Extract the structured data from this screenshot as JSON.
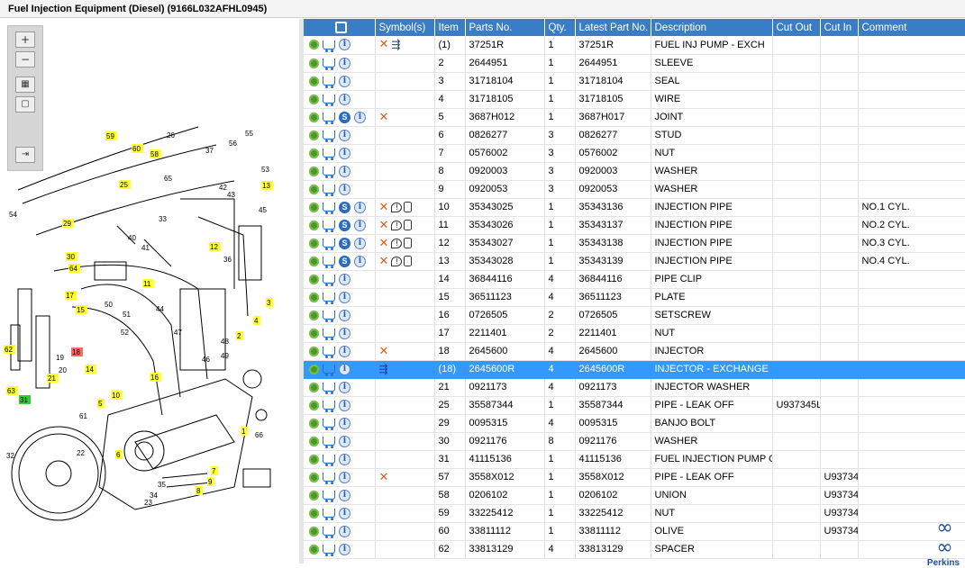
{
  "window": {
    "title": "Fuel Injection Equipment (Diesel) (9166L032AFHL0945)"
  },
  "zoom_toolbar": {
    "zoom_in_icon": "zoom-in-icon",
    "zoom_out_icon": "zoom-out-icon",
    "fit_icon": "fit-page-icon",
    "actual_size_icon": "actual-size-icon",
    "export_icon": "export-icon"
  },
  "diagram": {
    "labels": [
      {
        "t": "59",
        "y": true
      },
      {
        "t": "60",
        "y": true
      },
      {
        "t": "58",
        "y": true
      },
      {
        "t": "25",
        "y": true
      },
      {
        "t": "13",
        "y": true
      },
      {
        "t": "29",
        "y": true
      },
      {
        "t": "30",
        "y": true
      },
      {
        "t": "64",
        "y": true
      },
      {
        "t": "12",
        "y": true
      },
      {
        "t": "11",
        "y": true
      },
      {
        "t": "17",
        "y": true
      },
      {
        "t": "15",
        "y": true
      },
      {
        "t": "3",
        "y": true
      },
      {
        "t": "4",
        "y": true
      },
      {
        "t": "2",
        "y": true
      },
      {
        "t": "62",
        "y": true
      },
      {
        "t": "21",
        "y": true
      },
      {
        "t": "63",
        "y": true
      },
      {
        "t": "14",
        "y": true
      },
      {
        "t": "16",
        "y": true
      },
      {
        "t": "10",
        "y": true
      },
      {
        "t": "5",
        "y": true
      },
      {
        "t": "1",
        "y": true
      },
      {
        "t": "6",
        "y": true
      },
      {
        "t": "7",
        "y": true
      },
      {
        "t": "9",
        "y": true
      },
      {
        "t": "8",
        "y": true
      },
      {
        "t": "18",
        "r": true
      },
      {
        "t": "31",
        "g": true
      },
      {
        "t": "26"
      },
      {
        "t": "56"
      },
      {
        "t": "55"
      },
      {
        "t": "37"
      },
      {
        "t": "53"
      },
      {
        "t": "65"
      },
      {
        "t": "42"
      },
      {
        "t": "43"
      },
      {
        "t": "45"
      },
      {
        "t": "54"
      },
      {
        "t": "33"
      },
      {
        "t": "40"
      },
      {
        "t": "41"
      },
      {
        "t": "36"
      },
      {
        "t": "50"
      },
      {
        "t": "51"
      },
      {
        "t": "52"
      },
      {
        "t": "44"
      },
      {
        "t": "47"
      },
      {
        "t": "48"
      },
      {
        "t": "49"
      },
      {
        "t": "46"
      },
      {
        "t": "19"
      },
      {
        "t": "20"
      },
      {
        "t": "61"
      },
      {
        "t": "66"
      },
      {
        "t": "32"
      },
      {
        "t": "22"
      },
      {
        "t": "23"
      },
      {
        "t": "34"
      },
      {
        "t": "35"
      }
    ]
  },
  "table": {
    "columns": [
      "Symbol(s)",
      "Item",
      "Parts No.",
      "Qty.",
      "Latest Part No.",
      "Description",
      "Cut Out",
      "Cut In",
      "Comment"
    ],
    "rows": [
      {
        "item": "(1)",
        "part": "37251R",
        "qty": "1",
        "latest": "37251R",
        "desc": "FUEL INJ PUMP - EXCH",
        "cutout": "",
        "cutin": "",
        "comment": "",
        "s": false,
        "x": true,
        "branch": true,
        "bubble": false,
        "sel": false,
        "alt": false
      },
      {
        "item": "2",
        "part": "2644951",
        "qty": "1",
        "latest": "2644951",
        "desc": "SLEEVE",
        "cutout": "",
        "cutin": "",
        "comment": "",
        "s": false,
        "x": false,
        "branch": false,
        "bubble": false,
        "sel": false,
        "alt": false
      },
      {
        "item": "3",
        "part": "31718104",
        "qty": "1",
        "latest": "31718104",
        "desc": "SEAL",
        "cutout": "",
        "cutin": "",
        "comment": "",
        "s": false,
        "x": false,
        "branch": false,
        "bubble": false,
        "sel": false,
        "alt": false
      },
      {
        "item": "4",
        "part": "31718105",
        "qty": "1",
        "latest": "31718105",
        "desc": "WIRE",
        "cutout": "",
        "cutin": "",
        "comment": "",
        "s": false,
        "x": false,
        "branch": false,
        "bubble": false,
        "sel": false,
        "alt": false
      },
      {
        "item": "5",
        "part": "3687H012",
        "qty": "1",
        "latest": "3687H017",
        "desc": "JOINT",
        "cutout": "",
        "cutin": "",
        "comment": "",
        "s": true,
        "x": true,
        "branch": false,
        "bubble": false,
        "sel": false,
        "alt": false
      },
      {
        "item": "6",
        "part": "0826277",
        "qty": "3",
        "latest": "0826277",
        "desc": "STUD",
        "cutout": "",
        "cutin": "",
        "comment": "",
        "s": false,
        "x": false,
        "branch": false,
        "bubble": false,
        "sel": false,
        "alt": false
      },
      {
        "item": "7",
        "part": "0576002",
        "qty": "3",
        "latest": "0576002",
        "desc": "NUT",
        "cutout": "",
        "cutin": "",
        "comment": "",
        "s": false,
        "x": false,
        "branch": false,
        "bubble": false,
        "sel": false,
        "alt": false
      },
      {
        "item": "8",
        "part": "0920003",
        "qty": "3",
        "latest": "0920003",
        "desc": "WASHER",
        "cutout": "",
        "cutin": "",
        "comment": "",
        "s": false,
        "x": false,
        "branch": false,
        "bubble": false,
        "sel": false,
        "alt": false
      },
      {
        "item": "9",
        "part": "0920053",
        "qty": "3",
        "latest": "0920053",
        "desc": "WASHER",
        "cutout": "",
        "cutin": "",
        "comment": "",
        "s": false,
        "x": false,
        "branch": false,
        "bubble": false,
        "sel": false,
        "alt": false
      },
      {
        "item": "10",
        "part": "35343025",
        "qty": "1",
        "latest": "35343136",
        "desc": "INJECTION PIPE",
        "cutout": "",
        "cutin": "",
        "comment": "NO.1 CYL.",
        "s": true,
        "x": true,
        "branch": false,
        "bubble": true,
        "sel": false,
        "alt": false
      },
      {
        "item": "11",
        "part": "35343026",
        "qty": "1",
        "latest": "35343137",
        "desc": "INJECTION PIPE",
        "cutout": "",
        "cutin": "",
        "comment": "NO.2 CYL.",
        "s": true,
        "x": true,
        "branch": false,
        "bubble": true,
        "sel": false,
        "alt": false
      },
      {
        "item": "12",
        "part": "35343027",
        "qty": "1",
        "latest": "35343138",
        "desc": "INJECTION PIPE",
        "cutout": "",
        "cutin": "",
        "comment": "NO.3 CYL.",
        "s": true,
        "x": true,
        "branch": false,
        "bubble": true,
        "sel": false,
        "alt": false
      },
      {
        "item": "13",
        "part": "35343028",
        "qty": "1",
        "latest": "35343139",
        "desc": "INJECTION PIPE",
        "cutout": "",
        "cutin": "",
        "comment": "NO.4 CYL.",
        "s": true,
        "x": true,
        "branch": false,
        "bubble": true,
        "sel": false,
        "alt": false
      },
      {
        "item": "14",
        "part": "36844116",
        "qty": "4",
        "latest": "36844116",
        "desc": "PIPE CLIP",
        "cutout": "",
        "cutin": "",
        "comment": "",
        "s": false,
        "x": false,
        "branch": false,
        "bubble": false,
        "sel": false,
        "alt": false
      },
      {
        "item": "15",
        "part": "36511123",
        "qty": "4",
        "latest": "36511123",
        "desc": "PLATE",
        "cutout": "",
        "cutin": "",
        "comment": "",
        "s": false,
        "x": false,
        "branch": false,
        "bubble": false,
        "sel": false,
        "alt": false
      },
      {
        "item": "16",
        "part": "0726505",
        "qty": "2",
        "latest": "0726505",
        "desc": "SETSCREW",
        "cutout": "",
        "cutin": "",
        "comment": "",
        "s": false,
        "x": false,
        "branch": false,
        "bubble": false,
        "sel": false,
        "alt": false
      },
      {
        "item": "17",
        "part": "2211401",
        "qty": "2",
        "latest": "2211401",
        "desc": "NUT",
        "cutout": "",
        "cutin": "",
        "comment": "",
        "s": false,
        "x": false,
        "branch": false,
        "bubble": false,
        "sel": false,
        "alt": false
      },
      {
        "item": "18",
        "part": "2645600",
        "qty": "4",
        "latest": "2645600",
        "desc": "INJECTOR",
        "cutout": "",
        "cutin": "",
        "comment": "",
        "s": false,
        "x": true,
        "branch": false,
        "bubble": false,
        "sel": false,
        "alt": true
      },
      {
        "item": "(18)",
        "part": "2645600R",
        "qty": "4",
        "latest": "2645600R",
        "desc": "INJECTOR - EXCHANGE",
        "cutout": "",
        "cutin": "",
        "comment": "",
        "s": false,
        "x": false,
        "branch": true,
        "bubble": false,
        "sel": true,
        "alt": false
      },
      {
        "item": "21",
        "part": "0921173",
        "qty": "4",
        "latest": "0921173",
        "desc": "INJECTOR WASHER",
        "cutout": "",
        "cutin": "",
        "comment": "",
        "s": false,
        "x": false,
        "branch": false,
        "bubble": false,
        "sel": false,
        "alt": false
      },
      {
        "item": "25",
        "part": "35587344",
        "qty": "1",
        "latest": "35587344",
        "desc": "PIPE - LEAK OFF",
        "cutout": "U937345L",
        "cutin": "",
        "comment": "",
        "s": false,
        "x": false,
        "branch": false,
        "bubble": false,
        "sel": false,
        "alt": false
      },
      {
        "item": "29",
        "part": "0095315",
        "qty": "4",
        "latest": "0095315",
        "desc": "BANJO BOLT",
        "cutout": "",
        "cutin": "",
        "comment": "",
        "s": false,
        "x": false,
        "branch": false,
        "bubble": false,
        "sel": false,
        "alt": false
      },
      {
        "item": "30",
        "part": "0921176",
        "qty": "8",
        "latest": "0921176",
        "desc": "WASHER",
        "cutout": "",
        "cutin": "",
        "comment": "",
        "s": false,
        "x": false,
        "branch": false,
        "bubble": false,
        "sel": false,
        "alt": false
      },
      {
        "item": "31",
        "part": "41115136",
        "qty": "1",
        "latest": "41115136",
        "desc": "FUEL INJECTION PUMP GE",
        "cutout": "",
        "cutin": "",
        "comment": "",
        "s": false,
        "x": false,
        "branch": false,
        "bubble": false,
        "sel": false,
        "alt": true
      },
      {
        "item": "57",
        "part": "3558X012",
        "qty": "1",
        "latest": "3558X012",
        "desc": "PIPE - LEAK OFF",
        "cutout": "",
        "cutin": "U93734",
        "comment": "",
        "s": false,
        "x": true,
        "branch": false,
        "bubble": false,
        "sel": false,
        "alt": false
      },
      {
        "item": "58",
        "part": "0206102",
        "qty": "1",
        "latest": "0206102",
        "desc": "UNION",
        "cutout": "",
        "cutin": "U93734",
        "comment": "",
        "s": false,
        "x": false,
        "branch": false,
        "bubble": false,
        "sel": false,
        "alt": false
      },
      {
        "item": "59",
        "part": "33225412",
        "qty": "1",
        "latest": "33225412",
        "desc": "NUT",
        "cutout": "",
        "cutin": "U93734",
        "comment": "",
        "s": false,
        "x": false,
        "branch": false,
        "bubble": false,
        "sel": false,
        "alt": false
      },
      {
        "item": "60",
        "part": "33811112",
        "qty": "1",
        "latest": "33811112",
        "desc": "OLIVE",
        "cutout": "",
        "cutin": "U93734",
        "comment": "",
        "s": false,
        "x": false,
        "branch": false,
        "bubble": false,
        "sel": false,
        "alt": false
      },
      {
        "item": "62",
        "part": "33813129",
        "qty": "4",
        "latest": "33813129",
        "desc": "SPACER",
        "cutout": "",
        "cutin": "",
        "comment": "",
        "s": false,
        "x": false,
        "branch": false,
        "bubble": false,
        "sel": false,
        "alt": false
      }
    ]
  },
  "logo": {
    "name": "Perkins"
  },
  "colors": {
    "header": "#3a7dc7",
    "selection": "#3399ff",
    "label_yellow": "#ffff33",
    "label_red": "#ff6666",
    "label_green": "#33cc33",
    "x_mark": "#e05a1a"
  }
}
